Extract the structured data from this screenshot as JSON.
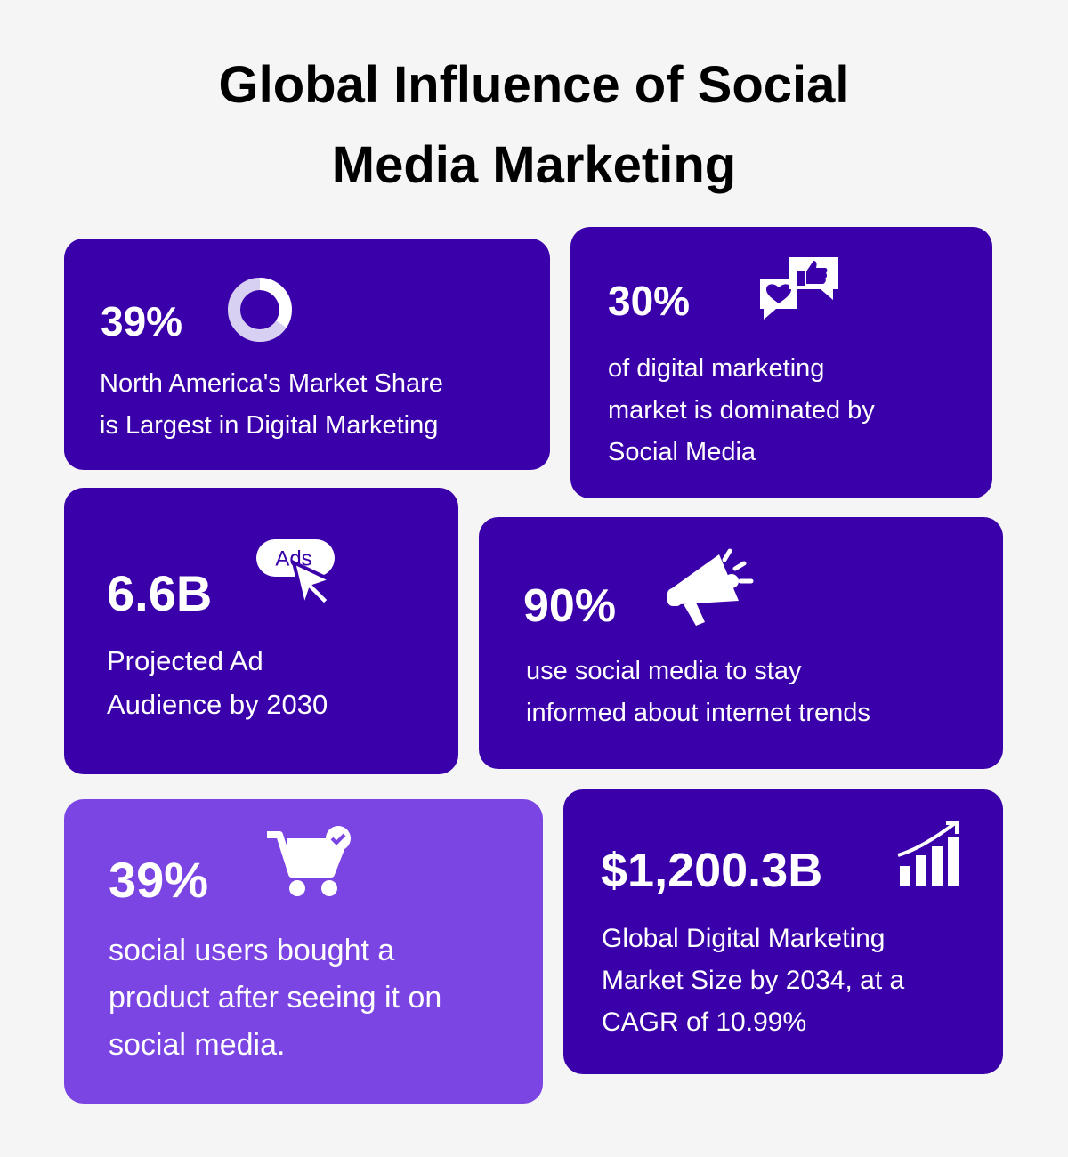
{
  "title": {
    "lines": [
      "Global Influence of Social",
      "Media Marketing"
    ]
  },
  "cards": [
    {
      "stat": "39%",
      "description": [
        "North America's Market Share",
        "is Largest in Digital Marketing"
      ]
    },
    {
      "stat": "30%",
      "description": [
        "of digital marketing",
        "market is dominated by",
        "Social Media"
      ]
    },
    {
      "stat": "6.6B",
      "icon_text": "Ads",
      "description": [
        "Projected Ad",
        "Audience by 2030"
      ]
    },
    {
      "stat": "90%",
      "description": [
        "use social media to stay",
        "informed about internet trends"
      ]
    },
    {
      "stat": "39%",
      "description": [
        "social users bought a",
        "product after seeing it on",
        "social media."
      ]
    },
    {
      "stat": "$1,200.3B",
      "description": [
        "Global Digital Marketing",
        "Market Size by 2034, at a",
        "CAGR of 10.99%"
      ]
    }
  ]
}
